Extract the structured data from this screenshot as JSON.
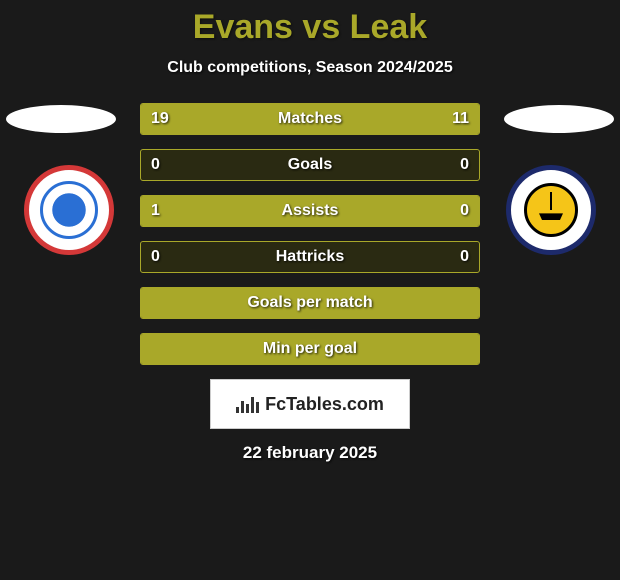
{
  "title": "Evans vs Leak",
  "subtitle": "Club competitions, Season 2024/2025",
  "date": "22 february 2025",
  "colors": {
    "accent": "#a9a829",
    "bg": "#1a1a1a",
    "bar_bg": "#2a2a12",
    "text": "#ffffff"
  },
  "brand": "FcTables.com",
  "crest_left_name": "AFC Fylde",
  "crest_right_name": "Boston United",
  "rows": [
    {
      "label": "Matches",
      "left": "19",
      "right": "11",
      "fill_left_pct": 63,
      "fill_right_pct": 37
    },
    {
      "label": "Goals",
      "left": "0",
      "right": "0",
      "fill_left_pct": 0,
      "fill_right_pct": 0
    },
    {
      "label": "Assists",
      "left": "1",
      "right": "0",
      "fill_left_pct": 100,
      "fill_right_pct": 0
    },
    {
      "label": "Hattricks",
      "left": "0",
      "right": "0",
      "fill_left_pct": 0,
      "fill_right_pct": 0
    },
    {
      "label": "Goals per match",
      "left": "",
      "right": "",
      "fill_left_pct": 100,
      "fill_right_pct": 0
    },
    {
      "label": "Min per goal",
      "left": "",
      "right": "",
      "fill_left_pct": 100,
      "fill_right_pct": 0
    }
  ]
}
